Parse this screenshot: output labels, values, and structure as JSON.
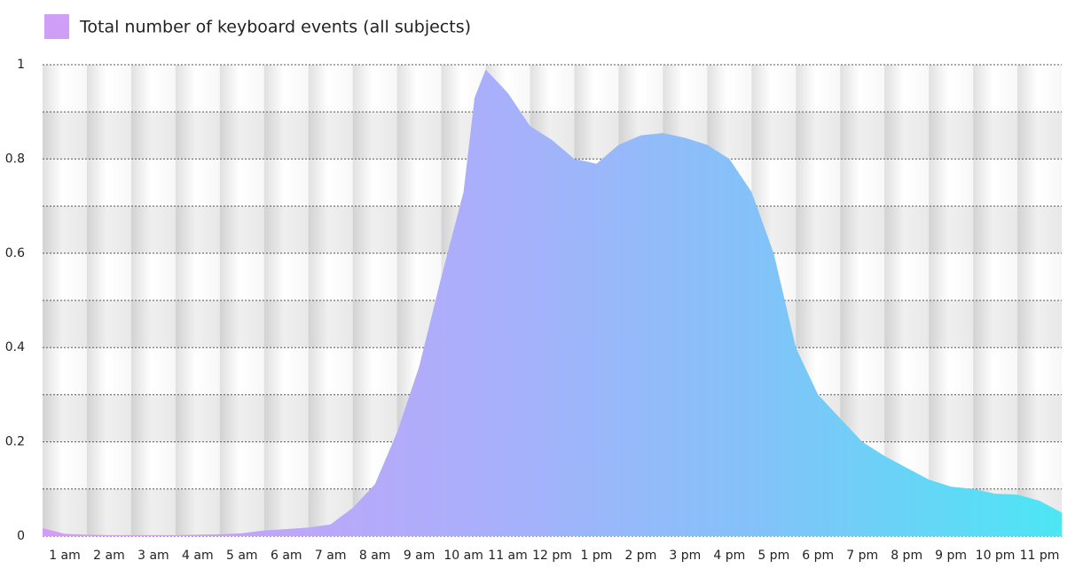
{
  "chart_data": {
    "type": "area",
    "series": [
      {
        "name": "Total number of keyboard events (all subjects)",
        "color": "#cf9ff8",
        "values": [
          0.017,
          0.005,
          0.003,
          0.002,
          0.002,
          0.002,
          0.002,
          0.003,
          0.004,
          0.006,
          0.012,
          0.015,
          0.018,
          0.025,
          0.06,
          0.11,
          0.22,
          0.36,
          0.55,
          0.73,
          0.93,
          0.99,
          0.94,
          0.87,
          0.84,
          0.8,
          0.79,
          0.83,
          0.85,
          0.855,
          0.845,
          0.83,
          0.8,
          0.73,
          0.6,
          0.4,
          0.3,
          0.25,
          0.2,
          0.17,
          0.145,
          0.12,
          0.105,
          0.1,
          0.09,
          0.088,
          0.075,
          0.05
        ]
      }
    ],
    "x": [
      0.5,
      1,
      1.5,
      2,
      2.5,
      3,
      3.5,
      4,
      4.5,
      5,
      5.5,
      6,
      6.5,
      7,
      7.5,
      8,
      8.5,
      9,
      9.5,
      10,
      10.25,
      10.5,
      11,
      11.5,
      12,
      12.5,
      13,
      13.5,
      14,
      14.5,
      15,
      15.5,
      16,
      16.5,
      17,
      17.5,
      18,
      18.5,
      19,
      19.5,
      20,
      20.5,
      21,
      21.5,
      22,
      22.5,
      23,
      23.5
    ],
    "xlim": [
      0.5,
      23.5
    ],
    "xticks": [
      {
        "value": 1,
        "label": "1 am"
      },
      {
        "value": 2,
        "label": "2 am"
      },
      {
        "value": 3,
        "label": "3 am"
      },
      {
        "value": 4,
        "label": "4 am"
      },
      {
        "value": 5,
        "label": "5 am"
      },
      {
        "value": 6,
        "label": "6 am"
      },
      {
        "value": 7,
        "label": "7 am"
      },
      {
        "value": 8,
        "label": "8 am"
      },
      {
        "value": 9,
        "label": "9 am"
      },
      {
        "value": 10,
        "label": "10 am"
      },
      {
        "value": 11,
        "label": "11 am"
      },
      {
        "value": 12,
        "label": "12 pm"
      },
      {
        "value": 13,
        "label": "1 pm"
      },
      {
        "value": 14,
        "label": "2 pm"
      },
      {
        "value": 15,
        "label": "3 pm"
      },
      {
        "value": 16,
        "label": "4 pm"
      },
      {
        "value": 17,
        "label": "5 pm"
      },
      {
        "value": 18,
        "label": "6 pm"
      },
      {
        "value": 19,
        "label": "7 pm"
      },
      {
        "value": 20,
        "label": "8 pm"
      },
      {
        "value": 21,
        "label": "9 pm"
      },
      {
        "value": 22,
        "label": "10 pm"
      },
      {
        "value": 23,
        "label": "11 pm"
      }
    ],
    "ylim": [
      0,
      1
    ],
    "yticks": [
      0,
      0.2,
      0.4,
      0.6,
      0.8,
      1
    ],
    "grid": true,
    "legend": "top-left"
  }
}
